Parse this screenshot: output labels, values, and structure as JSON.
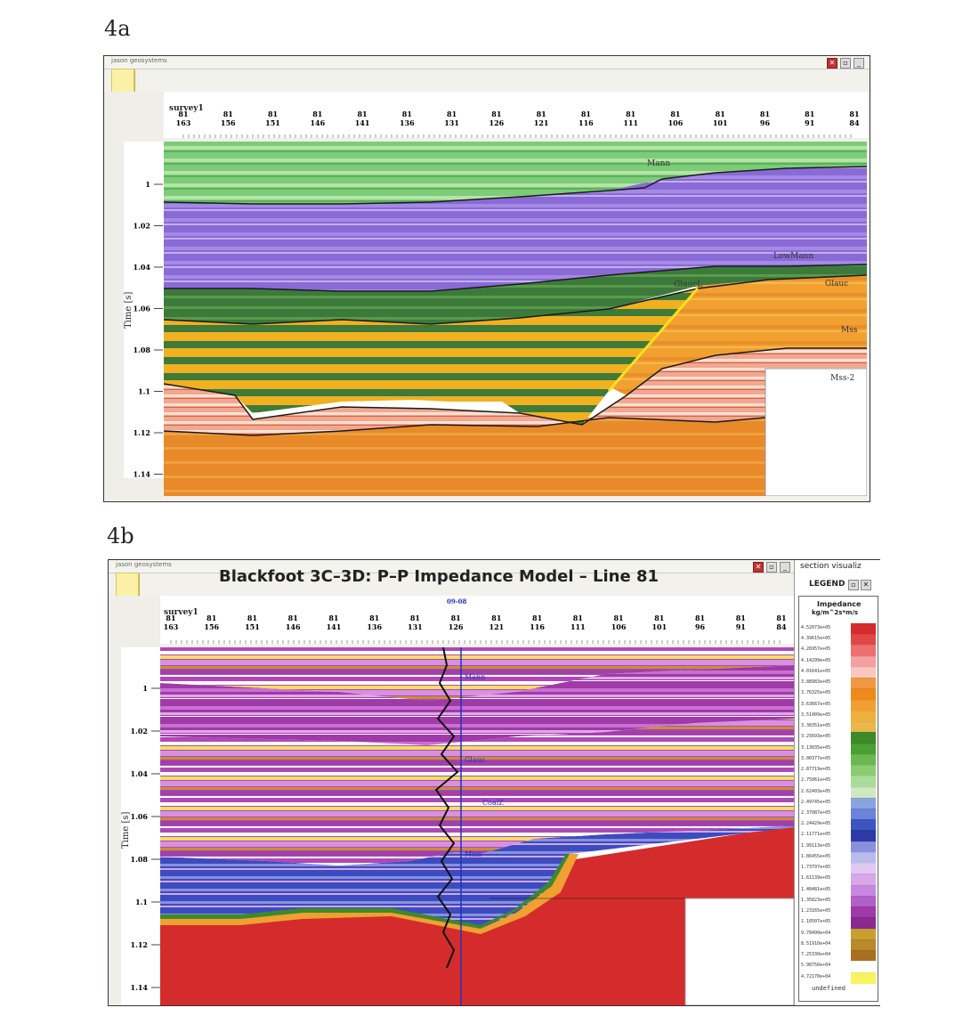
{
  "figures": {
    "a": {
      "label": "4a"
    },
    "b": {
      "label": "4b",
      "title": "Blackfoot 3C–3D: P–P Impedance Model – Line 81"
    }
  },
  "window": {
    "app_name": "jason geosystems",
    "buttons": [
      "close",
      "restore",
      "minimize"
    ]
  },
  "section": {
    "survey_label": "survey1",
    "inlines": [
      "81\n163",
      "81\n156",
      "81\n151",
      "81\n146",
      "81\n141",
      "81\n136",
      "81\n131",
      "81\n126",
      "81\n121",
      "81\n116",
      "81\n111",
      "81\n106",
      "81\n101",
      "81\n96",
      "81\n91",
      "81\n84"
    ],
    "time_ticks": [
      "1",
      "1.02",
      "1.04",
      "1.06",
      "1.08",
      "1.1",
      "1.12",
      "1.14"
    ],
    "time_axis_label": "Time [s]"
  },
  "horizons_a": [
    "Mann",
    "LowMann",
    "Glauc",
    "GlaucL",
    "Mss",
    "Mss-2"
  ],
  "well_b": {
    "label": "09-08",
    "markers": [
      "Mann",
      "Glauc",
      "CoalZ",
      "Miss"
    ]
  },
  "legend": {
    "header": "LEGEND",
    "panel_title": "section visualiz",
    "title": "Impedance",
    "units": "kg/m^2s*m/s",
    "values": [
      "4.52073e+05",
      "4.39615e+05",
      "4.26957e+05",
      "4.14299e+05",
      "4.01641e+05",
      "3.88983e+05",
      "3.76325e+05",
      "3.63667e+05",
      "3.51009e+05",
      "3.38351e+05",
      "3.25693e+05",
      "3.13035e+05",
      "3.00377e+05",
      "2.87719e+05",
      "2.75061e+05",
      "2.62403e+05",
      "2.49745e+05",
      "2.37087e+05",
      "2.24429e+05",
      "2.11771e+05",
      "1.99113e+05",
      "1.86455e+05",
      "1.73797e+05",
      "1.61139e+05",
      "1.48481e+05",
      "1.35823e+05",
      "1.23165e+05",
      "1.10507e+05",
      "9.78490e+04",
      "8.51910e+04",
      "7.25330e+04",
      "5.98750e+04",
      "4.72170e+04"
    ],
    "undefined_label": "undefined",
    "colors": [
      "#d42c2c",
      "#e04848",
      "#ec7070",
      "#f4a0a0",
      "#f8c8c0",
      "#f09840",
      "#ec8a1c",
      "#f0a030",
      "#f0b040",
      "#e8b84a",
      "#3c8a2a",
      "#4aa030",
      "#6ab850",
      "#8acc70",
      "#aadc9a",
      "#cfe8c0",
      "#8aa4e0",
      "#6a84d8",
      "#3c56c0",
      "#2c3aa8",
      "#8a90dc",
      "#b8bcec",
      "#e0c8f0",
      "#d8a8e8",
      "#c888e0",
      "#b060c8",
      "#a03aa8",
      "#8a2a90",
      "#c8a030",
      "#b88a2a",
      "#a87020",
      "#ffffff",
      "#f8f460"
    ]
  }
}
